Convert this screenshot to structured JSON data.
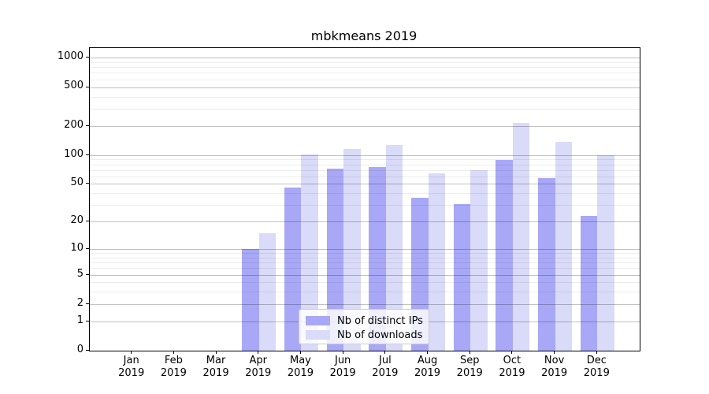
{
  "chart_data": {
    "type": "bar",
    "title": "mbkmeans 2019",
    "months": [
      "Jan",
      "Feb",
      "Mar",
      "Apr",
      "May",
      "Jun",
      "Jul",
      "Aug",
      "Sep",
      "Oct",
      "Nov",
      "Dec"
    ],
    "year": "2019",
    "series": [
      {
        "name": "Nb of distinct IPs",
        "color": "#a8a8f7",
        "values": [
          0,
          0,
          0,
          10,
          46,
          72,
          75,
          36,
          31,
          88,
          58,
          23
        ]
      },
      {
        "name": "Nb of downloads",
        "color": "#dadaf9",
        "values": [
          0,
          0,
          0,
          15,
          101,
          116,
          127,
          64,
          70,
          213,
          136,
          100
        ]
      }
    ],
    "y_scale": "log1p",
    "y_ticks_labeled": [
      0,
      1,
      2,
      5,
      10,
      20,
      50,
      100,
      200,
      500,
      1000
    ],
    "y_ticks_minor": [
      3,
      4,
      6,
      7,
      8,
      9,
      30,
      40,
      60,
      70,
      80,
      90,
      300,
      400,
      600,
      700,
      800,
      900
    ],
    "ylim": [
      0,
      1260
    ],
    "grid": "on",
    "legend_position": "lower-center",
    "colors": {
      "grid_major": "rgba(0,0,0,0.24)",
      "grid_minor": "rgba(0,0,0,0.07)",
      "spine": "#000000",
      "text": "#000000",
      "background": "#ffffff"
    }
  }
}
